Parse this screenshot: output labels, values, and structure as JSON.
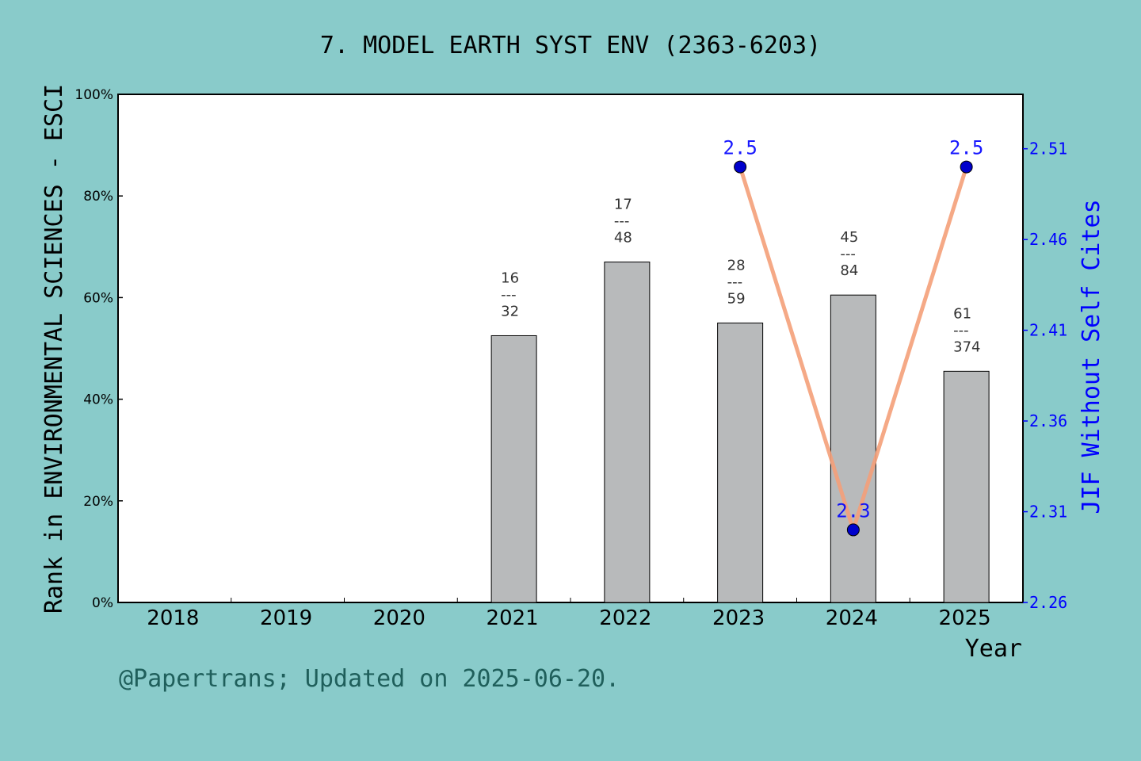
{
  "chart_data": {
    "type": "bar",
    "title": "7. MODEL EARTH SYST ENV (2363-6203)",
    "xlabel": "Year",
    "ylabel_left": "Rank in ENVIRONMENTAL SCIENCES - ESCI",
    "ylabel_right": "JIF Without Self Cites",
    "categories": [
      "2018",
      "2019",
      "2020",
      "2021",
      "2022",
      "2023",
      "2024",
      "2025"
    ],
    "left_axis": {
      "ylim": [
        0,
        100
      ],
      "ticks": [
        "0%",
        "20%",
        "40%",
        "60%",
        "80%",
        "100%"
      ]
    },
    "right_axis": {
      "ylim": [
        2.26,
        2.54
      ],
      "ticks": [
        "2.26",
        "2.31",
        "2.36",
        "2.41",
        "2.46",
        "2.51"
      ]
    },
    "bars": {
      "percent": [
        null,
        null,
        null,
        52.5,
        67.0,
        55.0,
        60.5,
        45.5
      ],
      "rank_labels": [
        null,
        null,
        null,
        {
          "rank": "16",
          "sep": "---",
          "total": "32"
        },
        {
          "rank": "17",
          "sep": "---",
          "total": "48"
        },
        {
          "rank": "28",
          "sep": "---",
          "total": "59"
        },
        {
          "rank": "45",
          "sep": "---",
          "total": "84"
        },
        {
          "rank": "61",
          "sep": "---",
          "total": "374"
        }
      ]
    },
    "line": {
      "values": [
        null,
        null,
        null,
        null,
        null,
        2.5,
        2.3,
        2.5
      ],
      "labels": [
        null,
        null,
        null,
        null,
        null,
        "2.5",
        "2.3",
        "2.5"
      ]
    },
    "colors": {
      "background": "#89CBCA",
      "plot_bg": "#FFFFFF",
      "bar_fill": "#B8BABB",
      "line": "#F4A07A",
      "marker": "#0000CC",
      "right_axis": "#0000FF",
      "footer": "#1F5F5B"
    },
    "grid": false
  },
  "footer": "@Papertrans; Updated on 2025-06-20."
}
